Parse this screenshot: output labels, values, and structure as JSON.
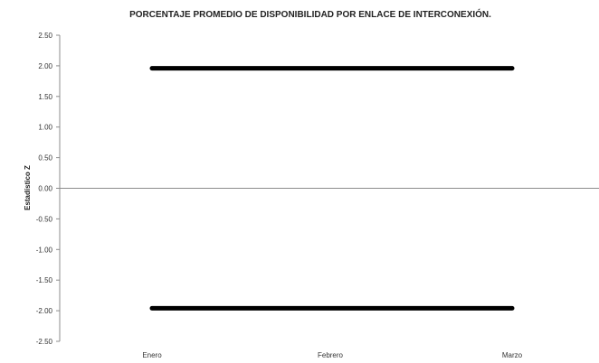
{
  "chart_data": {
    "type": "line",
    "title": "PORCENTAJE PROMEDIO DE DISPONIBILIDAD POR ENLACE DE INTERCONEXIÓN.",
    "xlabel": "",
    "ylabel": "Estadístico Z",
    "categories": [
      "Enero",
      "Febrero",
      "Marzo"
    ],
    "ylim": [
      -2.5,
      2.5
    ],
    "yticks": [
      "2.50",
      "2.00",
      "1.50",
      "1.00",
      "0.50",
      "0.00",
      "-0.50",
      "-1.00",
      "-1.50",
      "-2.00",
      "-2.50"
    ],
    "series": [
      {
        "values": [
          1.96,
          1.96,
          1.96
        ],
        "color": "#000000"
      },
      {
        "values": [
          -1.96,
          -1.96,
          -1.96
        ],
        "color": "#000000"
      }
    ],
    "grid": false,
    "legend": "none"
  }
}
